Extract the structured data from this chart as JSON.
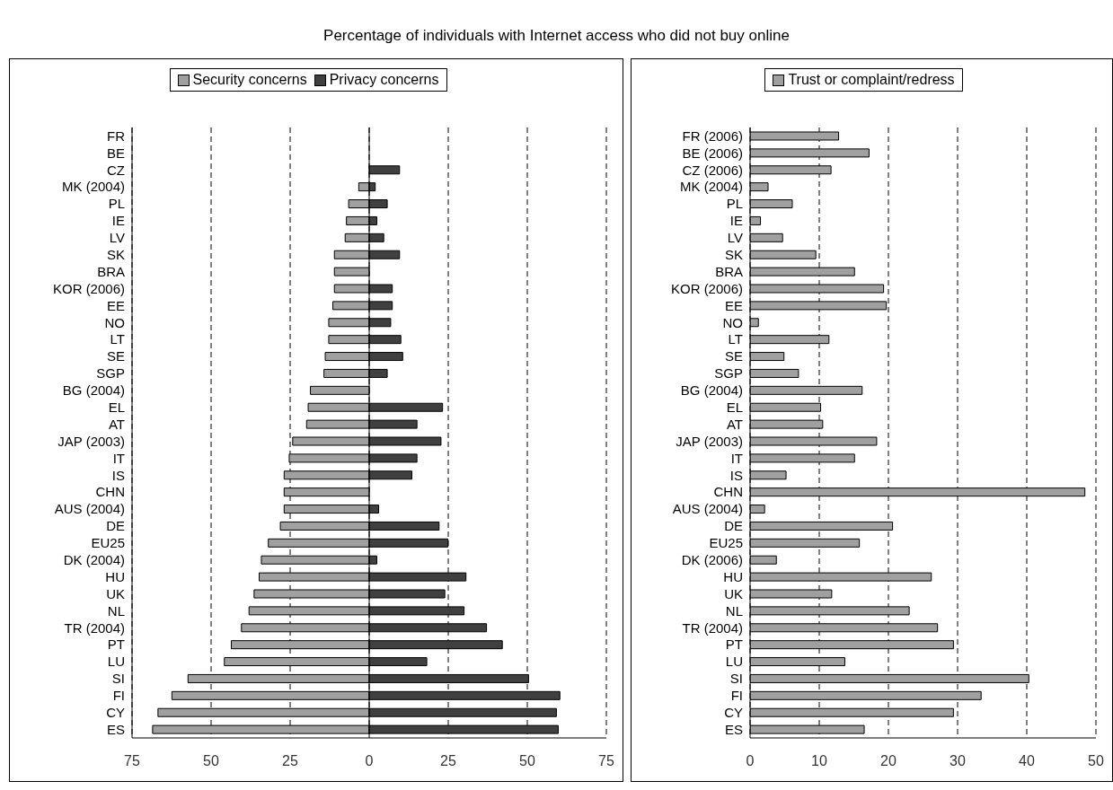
{
  "chart_data": [
    {
      "type": "bar",
      "title": "Percentage of individuals with Internet access who did not buy online",
      "orientation": "horizontal",
      "stacked": true,
      "categories": [
        "FR",
        "BE",
        "CZ",
        "MK (2004)",
        "PL",
        "IE",
        "LV",
        "SK",
        "BRA",
        "KOR (2006)",
        "EE",
        "NO",
        "LT",
        "SE",
        "SGP",
        "BG (2004)",
        "EL",
        "AT",
        "JAP (2003)",
        "IT",
        "IS",
        "CHN",
        "AUS (2004)",
        "DE",
        "EU25",
        "DK (2004)",
        "HU",
        "UK",
        "NL",
        "TR (2004)",
        "PT",
        "LU",
        "SI",
        "FI",
        "CY",
        "ES"
      ],
      "series": [
        {
          "name": "Security concerns",
          "color": "#a0a0a0",
          "values": [
            null,
            null,
            null,
            -3.3,
            -6.5,
            -7.2,
            -7.6,
            -11,
            -11,
            -11,
            -11.5,
            -12.8,
            -12.8,
            -13.9,
            -14.3,
            -18.6,
            -19.3,
            -19.8,
            -24.2,
            -25.3,
            -26.9,
            -26.9,
            -26.9,
            -28.1,
            -31.9,
            -34.1,
            -34.8,
            -36.4,
            -38,
            -40.4,
            -43.6,
            -45.8,
            -57.3,
            -62.4,
            -66.8,
            -68.5
          ]
        },
        {
          "name": "Privacy concerns",
          "color": "#404040",
          "values": [
            null,
            null,
            9.6,
            1.9,
            5.7,
            2.4,
            4.6,
            9.6,
            null,
            7.3,
            7.3,
            6.8,
            10,
            10.6,
            5.7,
            null,
            23.2,
            15.1,
            22.7,
            15.1,
            13.5,
            null,
            3,
            22.1,
            24.9,
            2.4,
            30.6,
            23.9,
            30,
            37.1,
            42.1,
            18.2,
            50.4,
            60.3,
            59.2,
            59.8
          ]
        }
      ],
      "xlim": [
        -75,
        75
      ],
      "xticks": [
        {
          "value": -75,
          "label": "75"
        },
        {
          "value": -50,
          "label": "50"
        },
        {
          "value": -25,
          "label": "25"
        },
        0,
        25,
        50,
        75
      ],
      "grid": "x",
      "legend": "top"
    },
    {
      "type": "bar",
      "orientation": "horizontal",
      "categories": [
        "FR (2006)",
        "BE (2006)",
        "CZ (2006)",
        "MK (2004)",
        "PL",
        "IE",
        "LV",
        "SK",
        "BRA",
        "KOR (2006)",
        "EE",
        "NO",
        "LT",
        "SE",
        "SGP",
        "BG (2004)",
        "EL",
        "AT",
        "JAP (2003)",
        "IT",
        "IS",
        "CHN",
        "AUS (2004)",
        "DE",
        "EU25",
        "DK (2006)",
        "HU",
        "UK",
        "NL",
        "TR (2004)",
        "PT",
        "LU",
        "SI",
        "FI",
        "CY",
        "ES"
      ],
      "series": [
        {
          "name": "Trust or complaint/redress",
          "color": "#a0a0a0",
          "values": [
            12.8,
            17.2,
            11.7,
            2.6,
            6.1,
            1.5,
            4.7,
            9.5,
            15.1,
            19.3,
            19.7,
            1.2,
            11.4,
            4.9,
            7.0,
            16.2,
            10.2,
            10.5,
            18.3,
            15.1,
            5.2,
            48.4,
            2.1,
            20.6,
            15.8,
            3.8,
            26.2,
            11.8,
            23,
            27.1,
            29.4,
            13.7,
            40.3,
            33.4,
            29.4,
            16.5
          ]
        }
      ],
      "xlim": [
        0,
        50
      ],
      "xticks": [
        0,
        10,
        20,
        30,
        40,
        50
      ],
      "grid": "x",
      "legend": "top"
    }
  ]
}
